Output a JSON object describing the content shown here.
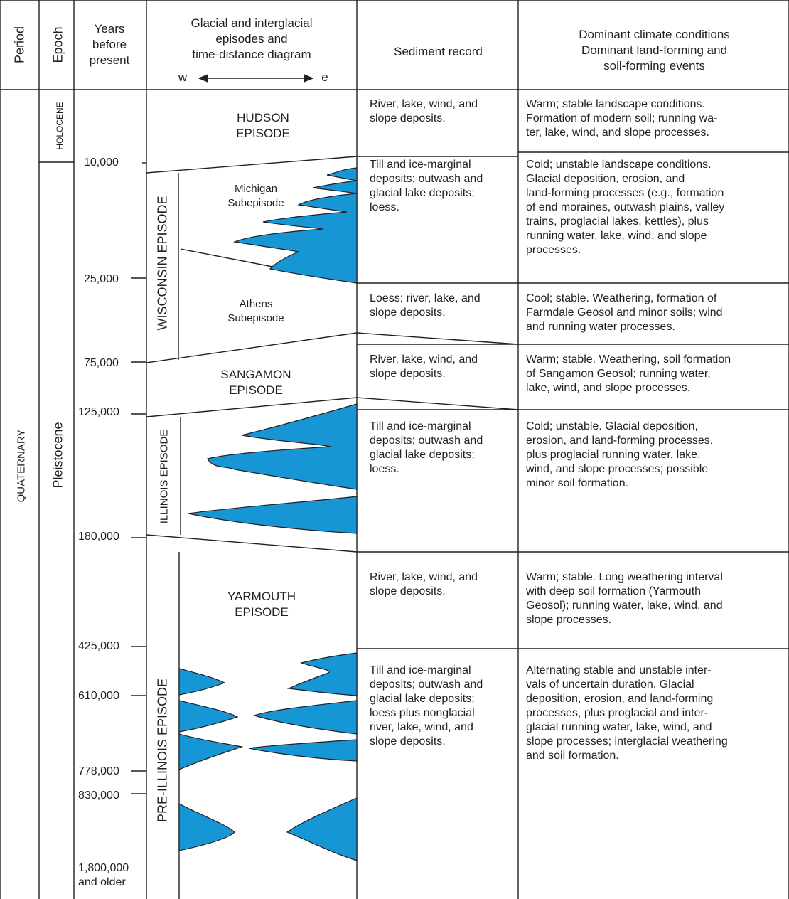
{
  "colors": {
    "ice": "#1796d6",
    "line": "#231f20",
    "background": "#ffffff"
  },
  "headers": {
    "period": "Period",
    "epoch": "Epoch",
    "years": [
      "Years",
      "before",
      "present"
    ],
    "glacial": [
      "Glacial and interglacial",
      "episodes and",
      "time-distance diagram"
    ],
    "west": "w",
    "east": "e",
    "sediment": "Sediment record",
    "climate": [
      "Dominant climate conditions",
      "Dominant land-forming and",
      "soil-forming events"
    ]
  },
  "period_label": "QUATERNARY",
  "epochs": {
    "holocene": "HOLOCENE",
    "pleistocene": "Pleistocene"
  },
  "ages": [
    "10,000",
    "25,000",
    "75,000",
    "125,000",
    "180,000",
    "425,000",
    "610,000",
    "778,000",
    "830,000"
  ],
  "age_oldest": [
    "1,800,000",
    "and older"
  ],
  "episodes": {
    "hudson": [
      "HUDSON",
      "EPISODE"
    ],
    "wisconsin": "WISCONSIN EPISODE",
    "michigan": [
      "Michigan",
      "Subepisode"
    ],
    "athens": [
      "Athens",
      "Subepisode"
    ],
    "sangamon": [
      "SANGAMON",
      "EPISODE"
    ],
    "illinois": "ILLINOIS EPISODE",
    "yarmouth": [
      "YARMOUTH",
      "EPISODE"
    ],
    "pre_illinois": "PRE-ILLINOIS EPISODE"
  },
  "sediment": [
    [
      "River, lake, wind, and",
      "slope deposits."
    ],
    [
      "Till and ice-marginal",
      "deposits; outwash and",
      "glacial lake deposits;",
      "loess."
    ],
    [
      "Loess; river, lake, and",
      "slope deposits."
    ],
    [
      "River, lake, wind, and",
      "slope deposits."
    ],
    [
      "Till and ice-marginal",
      "deposits; outwash and",
      "glacial lake deposits;",
      "loess."
    ],
    [
      "River, lake, wind, and",
      "slope deposits."
    ],
    [
      "Till and ice-marginal",
      "deposits; outwash and",
      "glacial lake deposits;",
      "loess plus nonglacial",
      "river, lake, wind, and",
      "slope deposits."
    ]
  ],
  "climate": [
    [
      "Warm; stable landscape conditions.",
      "Formation of modern soil; running wa-",
      "ter, lake, wind, and slope processes."
    ],
    [
      "Cold; unstable landscape conditions.",
      "Glacial deposition, erosion, and",
      "land-forming processes (e.g., formation",
      "of end moraines, outwash plains, valley",
      "trains, proglacial lakes, kettles), plus",
      "running water, lake, wind, and slope",
      "processes."
    ],
    [
      "Cool; stable. Weathering, formation of",
      "Farmdale Geosol and minor soils; wind",
      "and running water processes."
    ],
    [
      "Warm; stable. Weathering, soil formation",
      "of Sangamon Geosol; running water,",
      "lake, wind, and slope processes."
    ],
    [
      "Cold; unstable. Glacial deposition,",
      "erosion, and land-forming processes,",
      "plus proglacial running water, lake,",
      "wind, and slope processes; possible",
      "minor soil formation."
    ],
    [
      "Warm; stable. Long weathering interval",
      "with deep soil formation (Yarmouth",
      "Geosol); running water, lake, wind, and",
      "slope processes."
    ],
    [
      "Alternating stable and unstable inter-",
      "vals of uncertain duration. Glacial",
      "deposition, erosion, and land-forming",
      "processes, plus proglacial and inter-",
      "glacial running water, lake, wind, and",
      "slope processes; interglacial weathering",
      "and soil formation."
    ]
  ]
}
